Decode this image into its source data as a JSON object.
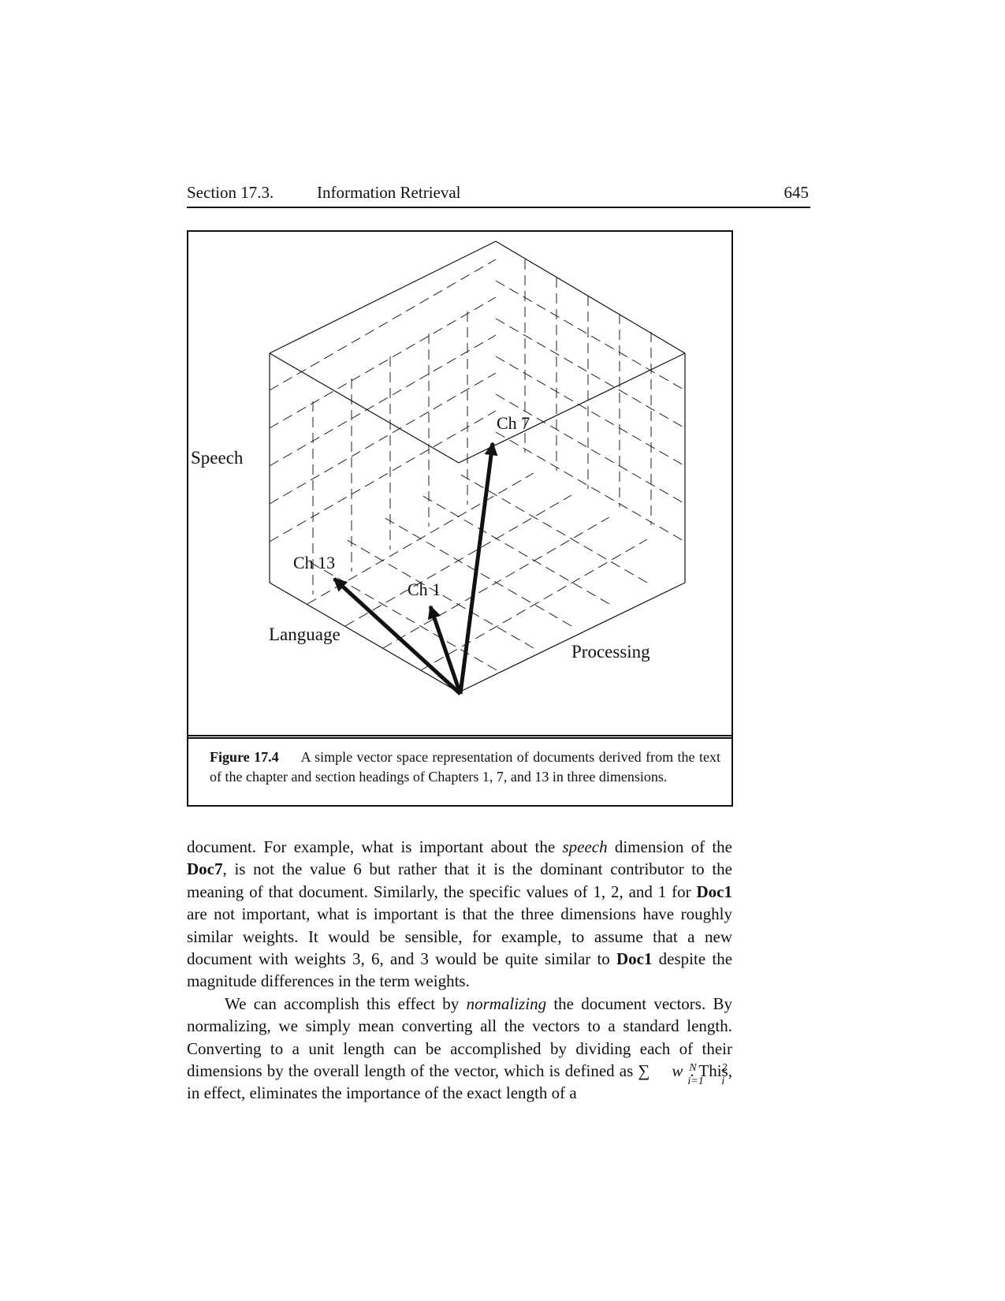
{
  "header": {
    "section": "Section 17.3.",
    "title": "Information Retrieval",
    "page_number": "645"
  },
  "figure": {
    "axis_labels": {
      "speech": "Speech",
      "language": "Language",
      "processing": "Processing"
    },
    "vectors": [
      {
        "label": "Ch 7"
      },
      {
        "label": "Ch 13"
      },
      {
        "label": "Ch 1"
      }
    ],
    "caption": {
      "label": "Figure 17.4",
      "text": "A simple vector space representation of documents derived from the text of the chapter and section headings of Chapters 1, 7, and 13 in three dimensions."
    }
  },
  "body": {
    "p1": {
      "s1": "document.  For example, what is important about the ",
      "speech": "speech",
      "s2": " dimension of the ",
      "doc7": "Doc7",
      "s3": ", is not the value 6 but rather that it is the dominant contributor to the meaning of that document.  Similarly, the specific values of 1, 2, and 1 for ",
      "doc1a": "Doc1",
      "s4": " are not important, what is important is that the three dimensions have roughly similar weights.  It would be sensible, for example, to assume that a new document with weights 3, 6, and 3 would be quite similar to ",
      "doc1b": "Doc1",
      "s5": " despite the magnitude differences in the term weights."
    },
    "p2": {
      "s1": "We can accomplish this effect by ",
      "normalizing": "normalizing",
      "s2": " the document vectors. By normalizing, we simply mean converting all the vectors to a standard length.  Converting to a unit length can be accomplished by dividing each of their dimensions by the overall length of the vector, which is defined as ",
      "sum_symbol": "∑",
      "sum_upper": "N",
      "sum_lower": "i=1",
      "w": "w",
      "w_sup": "2",
      "w_sub": "i",
      "s3": ".  This, in effect, eliminates the importance of the exact length of a"
    }
  }
}
